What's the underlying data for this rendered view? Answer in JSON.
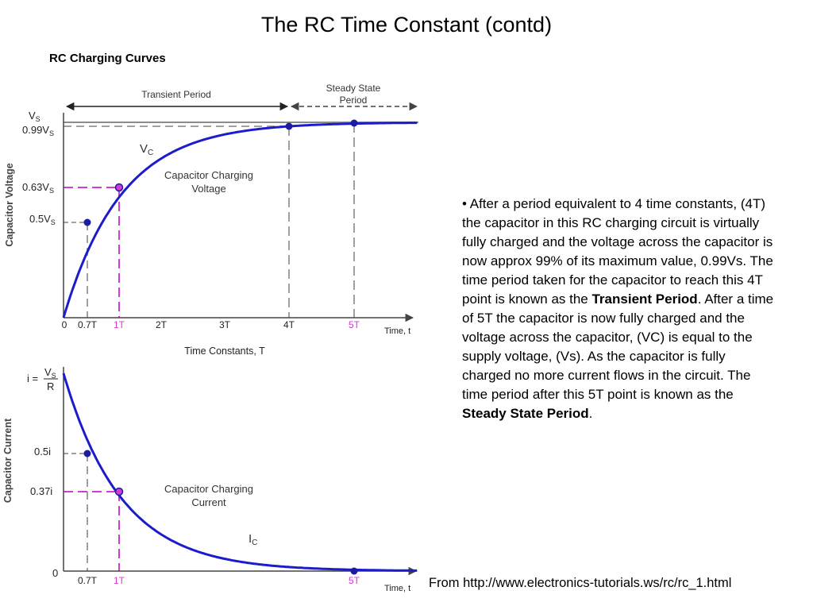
{
  "title": "The RC Time Constant (contd)",
  "subtitle": "RC Charging Curves",
  "colors": {
    "curve": "#1c1ccc",
    "highlight": "#d23cd2",
    "guide": "#a0a0a0",
    "point": "#1c1ca0"
  },
  "voltage_chart": {
    "y_axis_label": "Capacitor Voltage",
    "y_ticks": {
      "vs_main": "V",
      "vs_sub": "S",
      "v99_main": "0.99V",
      "v99_sub": "S",
      "v63_main": "0.63V",
      "v63_sub": "S",
      "v50_main": "0.5V",
      "v50_sub": "S"
    },
    "x_ticks": [
      "0",
      "0.7T",
      "1T",
      "2T",
      "3T",
      "4T",
      "5T"
    ],
    "x_end_label": "Time, t",
    "x_axis_title": "Time Constants, T",
    "transient_label": "Transient Period",
    "steady_label_1": "Steady State",
    "steady_label_2": "Period",
    "curve_main": "V",
    "curve_sub": "C",
    "curve_desc_1": "Capacitor Charging",
    "curve_desc_2": "Voltage"
  },
  "current_chart": {
    "y_axis_label": "Capacitor Current",
    "i_prefix": "i =",
    "i_num_main": "V",
    "i_num_sub": "S",
    "i_den": "R",
    "y_ticks": [
      "0.5i",
      "0.37i",
      "0"
    ],
    "x_ticks": [
      "0.7T",
      "1T",
      "5T"
    ],
    "x_end_label": "Time, t",
    "curve_main": "I",
    "curve_sub": "C",
    "curve_desc_1": "Capacitor Charging",
    "curve_desc_2": "Current"
  },
  "description": {
    "part1": "• After a period equivalent to 4 time constants, (4T) the capacitor in this RC charging circuit is virtually fully charged and the voltage across the capacitor is now approx 99% of its maximum value, 0.99Vs. The time period taken for the capacitor to reach this 4T point is known as the ",
    "bold1": "Transient Period",
    "part2": ". After a time of 5T the capacitor is now fully charged and the voltage across the capacitor, (VC) is equal to the supply voltage, (Vs). As the capacitor is fully charged no more current flows in the circuit. The time period after this 5T point is known as the ",
    "bold2": "Steady State Period",
    "part3": "."
  },
  "source": "From http://www.electronics-tutorials.ws/rc/rc_1.html"
}
